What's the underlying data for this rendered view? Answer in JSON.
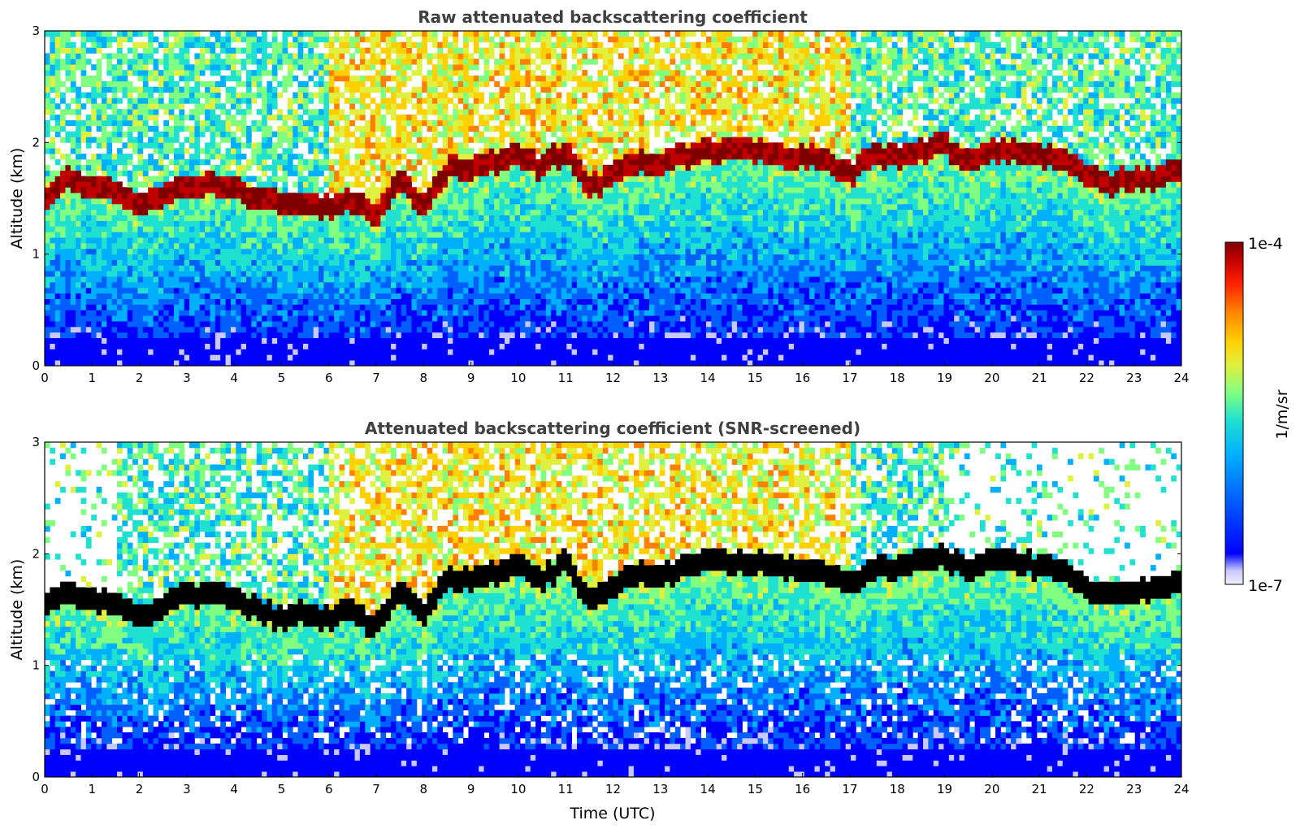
{
  "chart_data": [
    {
      "type": "heatmap",
      "title": "Raw attenuated backscattering coefficient",
      "xlabel": "",
      "ylabel": "Altitude (km)",
      "xlim": [
        0,
        24
      ],
      "ylim": [
        0,
        3
      ],
      "xticks": [
        "0",
        "1",
        "2",
        "3",
        "4",
        "5",
        "6",
        "7",
        "8",
        "9",
        "10",
        "11",
        "12",
        "13",
        "14",
        "15",
        "16",
        "17",
        "18",
        "19",
        "20",
        "21",
        "22",
        "23",
        "24"
      ],
      "yticks": [
        "0",
        "1",
        "2",
        "3"
      ],
      "screened": false,
      "boundary_layer_top_km": {
        "x": [
          0,
          0.5,
          1,
          1.5,
          2,
          2.5,
          3,
          3.5,
          4,
          4.5,
          5,
          5.5,
          6,
          6.5,
          7,
          7.5,
          8,
          8.5,
          9,
          9.5,
          10,
          10.5,
          11,
          11.5,
          12,
          12.5,
          13,
          13.5,
          14,
          14.5,
          15,
          15.5,
          16,
          16.5,
          17,
          17.5,
          18,
          18.5,
          19,
          19.5,
          20,
          20.5,
          21,
          21.5,
          22,
          22.5,
          23,
          23.5,
          24
        ],
        "y": [
          1.55,
          1.68,
          1.6,
          1.57,
          1.45,
          1.55,
          1.65,
          1.65,
          1.62,
          1.52,
          1.45,
          1.48,
          1.45,
          1.5,
          1.35,
          1.7,
          1.45,
          1.8,
          1.8,
          1.85,
          1.9,
          1.8,
          1.95,
          1.6,
          1.75,
          1.85,
          1.8,
          1.9,
          1.95,
          1.95,
          1.95,
          1.92,
          1.9,
          1.85,
          1.75,
          1.9,
          1.9,
          1.95,
          2.0,
          1.85,
          1.97,
          1.95,
          1.9,
          1.88,
          1.72,
          1.65,
          1.7,
          1.72,
          1.75
        ]
      }
    },
    {
      "type": "heatmap",
      "title": "Attenuated backscattering coefficient (SNR-screened)",
      "xlabel": "Time (UTC)",
      "ylabel": "Altitude (km)",
      "xlim": [
        0,
        24
      ],
      "ylim": [
        0,
        3
      ],
      "xticks": [
        "0",
        "1",
        "2",
        "3",
        "4",
        "5",
        "6",
        "7",
        "8",
        "9",
        "10",
        "11",
        "12",
        "13",
        "14",
        "15",
        "16",
        "17",
        "18",
        "19",
        "20",
        "21",
        "22",
        "23",
        "24"
      ],
      "yticks": [
        "0",
        "1",
        "2",
        "3"
      ],
      "screened": true,
      "boundary_layer_top_km": {
        "x": [
          0,
          0.5,
          1,
          1.5,
          2,
          2.5,
          3,
          3.5,
          4,
          4.5,
          5,
          5.5,
          6,
          6.5,
          7,
          7.5,
          8,
          8.5,
          9,
          9.5,
          10,
          10.5,
          11,
          11.5,
          12,
          12.5,
          13,
          13.5,
          14,
          14.5,
          15,
          15.5,
          16,
          16.5,
          17,
          17.5,
          18,
          18.5,
          19,
          19.5,
          20,
          20.5,
          21,
          21.5,
          22,
          22.5,
          23,
          23.5,
          24
        ],
        "y": [
          1.55,
          1.68,
          1.6,
          1.57,
          1.45,
          1.55,
          1.65,
          1.65,
          1.62,
          1.52,
          1.45,
          1.48,
          1.45,
          1.5,
          1.35,
          1.7,
          1.45,
          1.8,
          1.8,
          1.85,
          1.9,
          1.8,
          1.95,
          1.6,
          1.75,
          1.85,
          1.8,
          1.9,
          1.95,
          1.95,
          1.95,
          1.92,
          1.9,
          1.85,
          1.75,
          1.9,
          1.9,
          1.95,
          2.0,
          1.85,
          1.97,
          1.95,
          1.9,
          1.88,
          1.72,
          1.65,
          1.7,
          1.72,
          1.75
        ]
      }
    }
  ],
  "colorbar": {
    "label": "1/m/sr",
    "min_label": "1e-7",
    "max_label": "1e-4",
    "scale": "log",
    "colormap": "jet",
    "colors": [
      "#f0f0ff",
      "#c8c8ff",
      "#0000ff",
      "#0060ff",
      "#00b0ff",
      "#20e0d0",
      "#80ff80",
      "#e0f040",
      "#ffd000",
      "#ff8000",
      "#ff2000",
      "#c00000",
      "#800000"
    ]
  }
}
